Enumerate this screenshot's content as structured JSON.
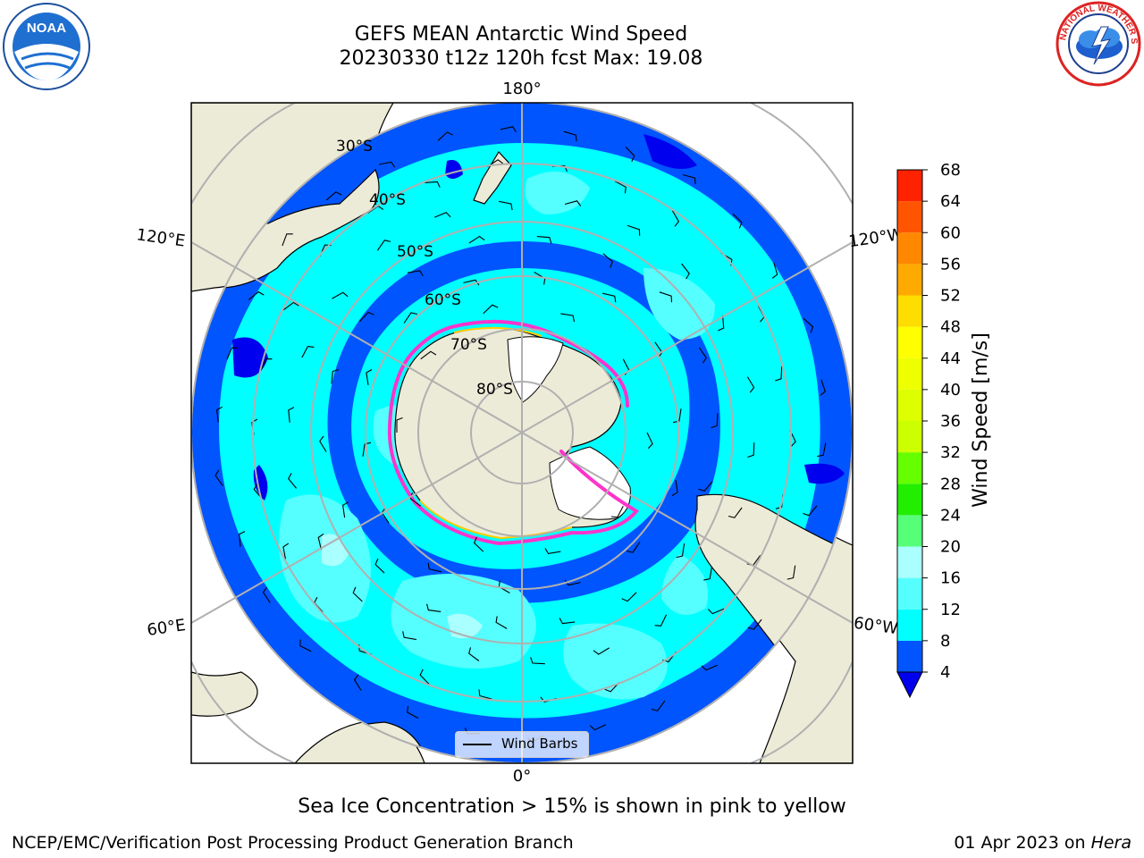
{
  "header": {
    "title_line1": "GEFS MEAN Antarctic Wind Speed",
    "title_line2": "20230330 t12z 120h fcst   Max: 19.08"
  },
  "logos": {
    "left": "noaa-logo",
    "right": "national-weather-service-logo",
    "left_text": "NOAA",
    "right_text": "NATIONAL WEATHER SERVICE"
  },
  "map": {
    "projection": "south-polar-stereographic",
    "longitude_labels": {
      "top": "180°",
      "upper_left": "120°E",
      "upper_right": "120°W",
      "lower_left": "60°E",
      "lower_right": "60°W",
      "bottom": "0°"
    },
    "latitude_labels": [
      "30°S",
      "40°S",
      "50°S",
      "60°S",
      "70°S",
      "80°S"
    ],
    "legend_label": "Wind Barbs"
  },
  "colorbar": {
    "label": "Wind Speed [m/s]",
    "ticks": [
      "4",
      "8",
      "12",
      "16",
      "20",
      "24",
      "28",
      "32",
      "36",
      "40",
      "44",
      "48",
      "52",
      "56",
      "60",
      "64",
      "68"
    ],
    "colors": [
      "#0055ff",
      "#00ffff",
      "#55ffff",
      "#aaffff",
      "#55ff77",
      "#22ee00",
      "#66ff00",
      "#ccff00",
      "#ddff00",
      "#eeff00",
      "#ffff00",
      "#ffdd00",
      "#ffaa00",
      "#ff8800",
      "#ff5500",
      "#ff2200"
    ],
    "under_color": "#0000ee"
  },
  "footer": {
    "caption": "Sea Ice Concentration > 15% is shown in pink to yellow",
    "credit": "NCEP/EMC/Verification Post Processing Product Generation Branch",
    "date_prefix": "01 Apr 2023 on ",
    "host": "Hera"
  }
}
